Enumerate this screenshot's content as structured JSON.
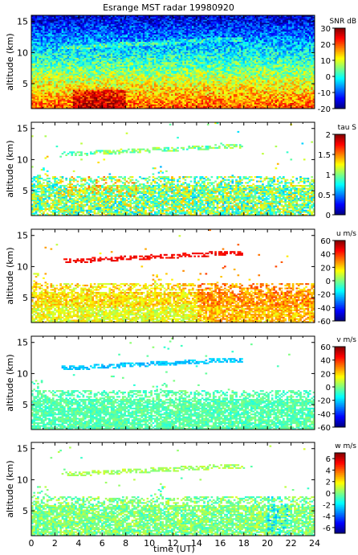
{
  "title": "Esrange MST radar 19980920",
  "xlabel": "time (UT)",
  "x_ticks": [
    "0",
    "2",
    "4",
    "6",
    "8",
    "10",
    "12",
    "14",
    "16",
    "18",
    "20",
    "22",
    "24"
  ],
  "chart_data": [
    {
      "type": "heatmap",
      "ylabel": "altitude (km)",
      "colorbar_label": "SNR dB",
      "xlim": [
        0,
        24
      ],
      "ylim": [
        1,
        16
      ],
      "y_ticks": [
        "5",
        "10",
        "15"
      ],
      "clim": [
        -20,
        30
      ],
      "colorbar_ticks": [
        "30",
        "20",
        "10",
        "0",
        "-10",
        "-20"
      ],
      "pattern": "dense coverage; strongest SNR (red) below about 4 km, decreasing upward to blue near 15 km; a faint tilted cyan layer rises from about 9.5 km to 12 km"
    },
    {
      "type": "heatmap",
      "ylabel": "altitude (km)",
      "colorbar_label": "tau S",
      "xlim": [
        0,
        24
      ],
      "ylim": [
        1,
        16
      ],
      "y_ticks": [
        "5",
        "10",
        "15"
      ],
      "clim": [
        0,
        2
      ],
      "colorbar_ticks": [
        "2",
        "1.5",
        "1",
        "0.5",
        "0"
      ],
      "pattern": "values mostly 0.7 to 1.3 below 7.5 km; a thin sloping layer rising from about 11 km near 3 UT to 12 km near 16 UT"
    },
    {
      "type": "heatmap",
      "ylabel": "altitude (km)",
      "colorbar_label": "u m/s",
      "xlim": [
        0,
        24
      ],
      "ylim": [
        1,
        16
      ],
      "y_ticks": [
        "5",
        "10",
        "15"
      ],
      "clim": [
        -60,
        60
      ],
      "colorbar_ticks": [
        "60",
        "40",
        "20",
        "0",
        "-20",
        "-40",
        "-60"
      ],
      "pattern": "zonal wind about 15 to 35 m/s below 7.5 km, stronger after 14 UT; sloping layer near 11 to 12.5 km around 40 to 50 m/s"
    },
    {
      "type": "heatmap",
      "ylabel": "altitude (km)",
      "colorbar_label": "v m/s",
      "xlim": [
        0,
        24
      ],
      "ylim": [
        1,
        16
      ],
      "y_ticks": [
        "5",
        "10",
        "15"
      ],
      "clim": [
        -60,
        60
      ],
      "colorbar_ticks": [
        "60",
        "40",
        "20",
        "0",
        "-20",
        "-40",
        "-60"
      ],
      "pattern": "meridional wind about -10 to 0 m/s below 7.5 km; sloping layer near 11 to 12.5 km around -20 m/s"
    },
    {
      "type": "heatmap",
      "ylabel": "altitude (km)",
      "colorbar_label": "w m/s",
      "xlim": [
        0,
        24
      ],
      "ylim": [
        1,
        16
      ],
      "y_ticks": [
        "5",
        "10",
        "15"
      ],
      "clim": [
        -7,
        7
      ],
      "colorbar_ticks": [
        "6",
        "4",
        "2",
        "0",
        "-2",
        "-4",
        "-6"
      ],
      "pattern": "vertical wind near 0 m/s with scattered variations of plus or minus 1 to 2 m/s below 7.5 km; thin sloping layer near 11 to 12.5 km"
    }
  ]
}
